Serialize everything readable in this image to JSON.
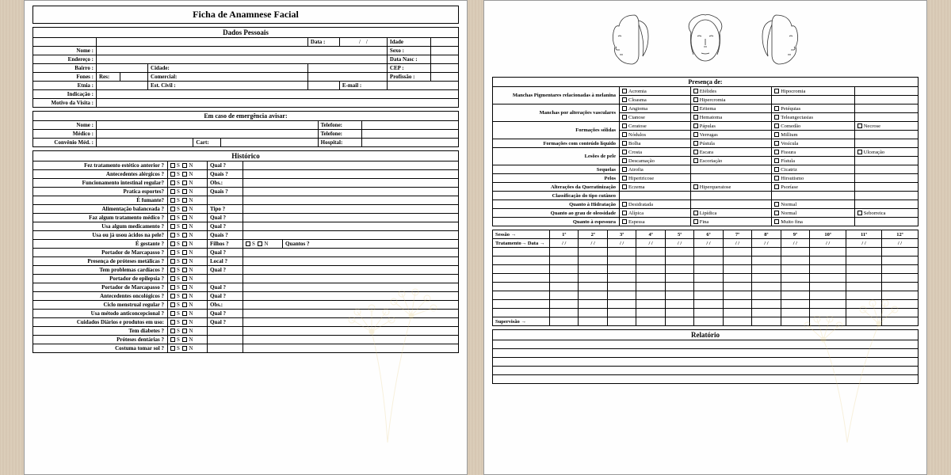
{
  "title": "Ficha de Anamnese Facial",
  "sections": {
    "dados": "Dados Pessoais",
    "emerg": "Em caso de emergência avisar:",
    "hist": "Histórico",
    "presenca": "Presença de:",
    "relat": "Relatório"
  },
  "dados_labels": {
    "data": "Data :",
    "idade": "Idade",
    "nome": "Nome :",
    "sexo": "Sexo :",
    "endereco": "Endereço :",
    "datanasc": "Data Nasc :",
    "bairro": "Bairro :",
    "cidade": "Cidade:",
    "cep": "CEP :",
    "fones": "Fones :",
    "res": "Res:",
    "comercial": "Comercial:",
    "profissao": "Profissão :",
    "etnia": "Etnia :",
    "estcivil": "Est. Civil :",
    "email": "E-mail :",
    "indicacao": "Indicação :",
    "motivo": "Motivo da Visita :",
    "date_sep": "/"
  },
  "emerg_labels": {
    "nome": "Nome :",
    "telefone": "Telefone:",
    "medico": "Médico :",
    "convenio": "Convênio Méd. :",
    "cart": "Cart:",
    "hospital": "Hospital:"
  },
  "historico": [
    {
      "q": "Fez tratamento estético anterior ?",
      "f": "Qual ?"
    },
    {
      "q": "Antecedentes alérgicos ?",
      "f": "Quais ?"
    },
    {
      "q": "Funcionamento intestinal regular?",
      "f": "Obs.:"
    },
    {
      "q": "Pratica esportes?",
      "f": "Quais ?"
    },
    {
      "q": "É fumante?",
      "f": ""
    },
    {
      "q": "Alimentação balanceada ?",
      "f": "Tipo ?"
    },
    {
      "q": "Faz algum tratamento médico ?",
      "f": "Qual ?"
    },
    {
      "q": "Usa algum medicamento ?",
      "f": "Qual ?"
    },
    {
      "q": "Usa ou já usou ácidos na pele?",
      "f": "Quais ?"
    },
    {
      "q": "É gestante ?",
      "f": "Filhos ?",
      "extra": true,
      "extra_f": "Quantos ?"
    },
    {
      "q": "Portador de Marcapasso ?",
      "f": "Qual ?"
    },
    {
      "q": "Presença de próteses metálicas ?",
      "f": "Local ?"
    },
    {
      "q": "Tem problemas cardíacos ?",
      "f": "Qual ?"
    },
    {
      "q": "Portador de epilepsia ?",
      "f": ""
    },
    {
      "q": "Portador de Marcapasso ?",
      "f": "Qual ?"
    },
    {
      "q": "Antecedentes oncológicos ?",
      "f": "Qual ?"
    },
    {
      "q": "Ciclo  menstrual regular ?",
      "f": "Obs.:"
    },
    {
      "q": "Usa método anticoncepcional ?",
      "f": "Qual ?"
    },
    {
      "q": "Cuidados Diários e produtos em uso:",
      "f": "Qual ?"
    },
    {
      "q": "Tem diabetes ?",
      "f": ""
    },
    {
      "q": "Próteses dentárias ?",
      "f": ""
    },
    {
      "q": "Costuma tomar sol ?",
      "f": ""
    }
  ],
  "sn": {
    "s": "S",
    "n": "N"
  },
  "presenca": [
    {
      "l": "Manchas Pigmentares relacionadas à melanina",
      "opts": [
        [
          "Acromia",
          "Efélides",
          "Hipocromia"
        ],
        [
          "Cloasma",
          "Hipercromia",
          ""
        ]
      ]
    },
    {
      "l": "Manchas por alterações vasculares",
      "opts": [
        [
          "Angioma",
          "Eritema",
          "Petéquias"
        ],
        [
          "Cianose",
          "Hematoma",
          "Teleangectasias"
        ]
      ]
    },
    {
      "l": "Formações sólidas",
      "opts": [
        [
          "Ceratose",
          "Pápulas",
          "Comedão",
          "Necrose"
        ],
        [
          "Nódulos",
          "Verrugas",
          "Millium",
          ""
        ]
      ]
    },
    {
      "l": "Formações com conteúdo líquido",
      "opts": [
        [
          "Bolha",
          "Pústula",
          "Vesícula"
        ]
      ]
    },
    {
      "l": "Lesões de pele",
      "opts": [
        [
          "Crosta",
          "Escara",
          "Fissura",
          "Ulceração"
        ],
        [
          "Descamação",
          "Escoriação",
          "Fístula",
          ""
        ]
      ]
    },
    {
      "l": "Sequelas",
      "opts": [
        [
          "Atrofia",
          "",
          "Cicatriz"
        ]
      ]
    },
    {
      "l": "Pelos",
      "opts": [
        [
          "Hipertricose",
          "",
          "Hirsutismo"
        ]
      ]
    },
    {
      "l": "Alterações da Queratinização",
      "opts": [
        [
          "Eczema",
          "Hiperqueratose",
          "Psoríase"
        ]
      ]
    },
    {
      "l": "Classificação do tipo cutâneo",
      "opts": []
    },
    {
      "l": "Quanto à Hidratação",
      "opts": [
        [
          "Desidratada",
          "",
          "Normal"
        ]
      ]
    },
    {
      "l": "Quanto ao grau de oleosidade",
      "opts": [
        [
          "Alípica",
          "Lipídica",
          "Normal",
          "Seborreica"
        ]
      ]
    },
    {
      "l": "Quanto à espessura",
      "opts": [
        [
          "Espessa",
          "Fina",
          "Muito fina"
        ]
      ]
    }
  ],
  "sessao": {
    "sessao": "Sessão →",
    "tratamento": "Tratamento→",
    "supervisao": "Supervisão →",
    "data": "Data →",
    "date_sep": "/  /",
    "nums": [
      "1ª",
      "2ª",
      "3ª",
      "4ª",
      "5ª",
      "6ª",
      "7ª",
      "8ª",
      "9ª",
      "10ª",
      "11ª",
      "12ª"
    ]
  },
  "colors": {
    "border": "#000000",
    "bg": "#fefefe",
    "deco": "#e6c97a"
  }
}
